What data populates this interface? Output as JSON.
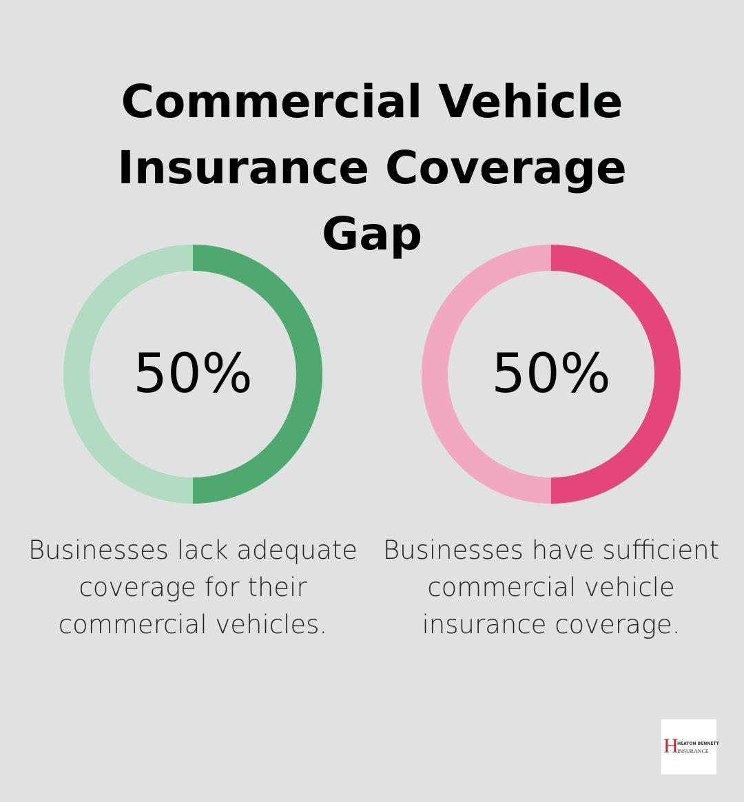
{
  "title": "Commercial Vehicle Insurance Coverage Gap",
  "chart_data": [
    {
      "type": "donut",
      "values": [
        50
      ],
      "value_labels": [
        "50%"
      ],
      "ylim": [
        0,
        100
      ],
      "color": "#4ea96f",
      "track_color": "#b2dcc1",
      "description": "Businesses lack adequate coverage for their commercial vehicles."
    },
    {
      "type": "donut",
      "values": [
        50
      ],
      "value_labels": [
        "50%"
      ],
      "ylim": [
        0,
        100
      ],
      "color": "#e4457a",
      "track_color": "#f2a8bf",
      "description": "Businesses have sufficient commercial vehicle insurance coverage."
    }
  ],
  "logo": {
    "initial": "H",
    "line1": "HEATON BENNETT",
    "line2": "INSURANCE"
  }
}
